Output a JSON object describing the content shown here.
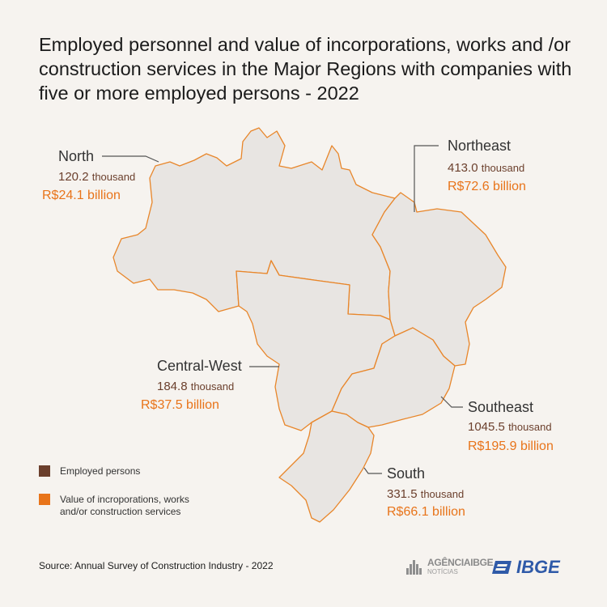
{
  "title": "Employed personnel and value of incorporations, works and /or construction services in the Major Regions with companies with five or more employed persons - 2022",
  "regions": {
    "north": {
      "name": "North",
      "employed_value": "120.2",
      "employed_unit": "thousand",
      "value": "R$24.1 billion"
    },
    "northeast": {
      "name": "Northeast",
      "employed_value": "413.0",
      "employed_unit": "thousand",
      "value": "R$72.6 billion"
    },
    "central_west": {
      "name": "Central-West",
      "employed_value": "184.8",
      "employed_unit": "thousand",
      "value": "R$37.5 billion"
    },
    "southeast": {
      "name": "Southeast",
      "employed_value": "1045.5",
      "employed_unit": "thousand",
      "value": "R$195.9 billion"
    },
    "south": {
      "name": "South",
      "employed_value": "331.5",
      "employed_unit": "thousand",
      "value": "R$66.1 billion"
    }
  },
  "legend": [
    {
      "label": "Employed persons",
      "color": "#6b3f2c"
    },
    {
      "label": "Value of incroporations, works and/or construction services",
      "color": "#e8741a"
    }
  ],
  "source": "Source: Annual Survey of Construction Industry - 2022",
  "logos": {
    "agencia_name": "AGÊNCIAIBGE",
    "agencia_sub": "NOTÍCIAS",
    "ibge": "IBGE"
  },
  "colors": {
    "region_fill": "#e8e5e2",
    "border": "#e8862a",
    "employed": "#6b3f2c",
    "value": "#e8741a",
    "background": "#f6f3ef"
  }
}
